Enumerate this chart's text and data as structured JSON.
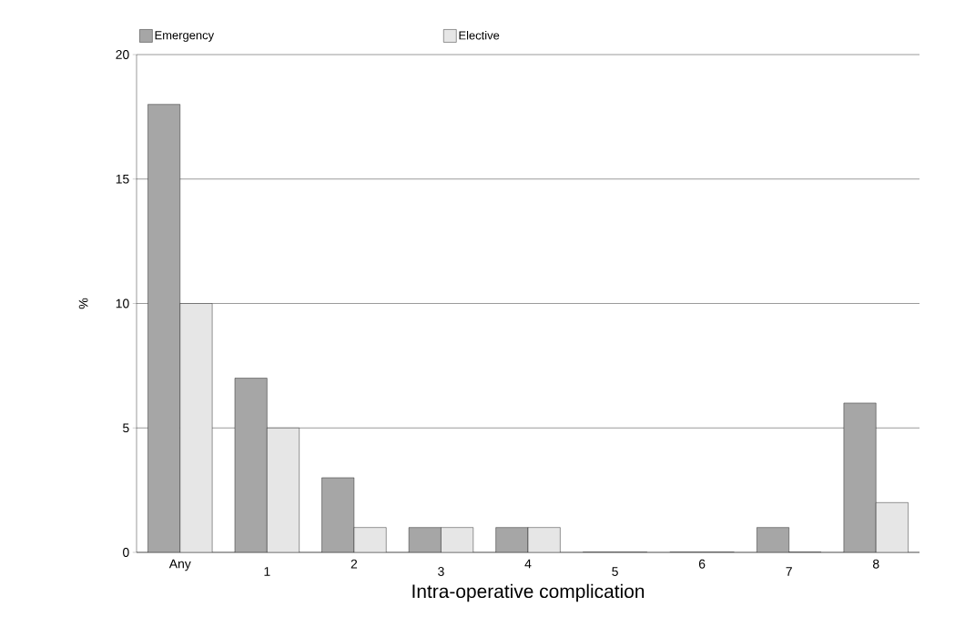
{
  "chart_data": {
    "type": "bar",
    "xlabel": "Intra-operative complication",
    "ylabel": "%",
    "categories": [
      "Any",
      "1",
      "2",
      "3",
      "4",
      "5",
      "6",
      "7",
      "8"
    ],
    "series": [
      {
        "name": "Emergency",
        "color": "#a6a6a6",
        "values": [
          18,
          7,
          3,
          1,
          1,
          0,
          0,
          1,
          6
        ]
      },
      {
        "name": "Elective",
        "color": "#e6e6e6",
        "values": [
          10,
          5,
          1,
          1,
          1,
          0,
          0,
          0,
          2
        ]
      }
    ],
    "ylim": [
      0,
      20
    ],
    "yticks": [
      0,
      5,
      10,
      15,
      20
    ],
    "grid": "y",
    "legend": "top"
  }
}
